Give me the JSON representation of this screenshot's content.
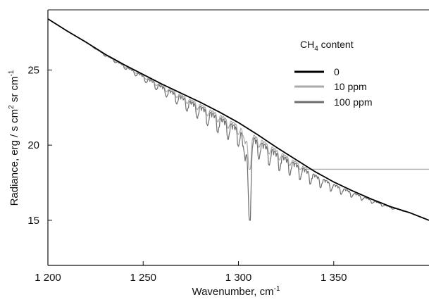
{
  "chart_data": {
    "type": "line",
    "xlabel": "Wavenumber, cm",
    "xlabel_sup": "-1",
    "ylabel": "Radiance, erg / s cm",
    "ylabel_sup1": "2",
    "ylabel_mid": " sr cm",
    "ylabel_sup2": "-1",
    "xlim": [
      1200,
      1400
    ],
    "ylim": [
      12,
      29
    ],
    "x_ticks": [
      1200,
      1250,
      1300,
      1350
    ],
    "x_tick_labels": [
      "1 200",
      "1 250",
      "1 300",
      "1 350"
    ],
    "y_ticks": [
      15,
      20,
      25
    ],
    "y_tick_labels": [
      "15",
      "20",
      "25"
    ],
    "grid": false,
    "legend": {
      "title": "CH",
      "title_sub": "4",
      "title_rest": " content",
      "placement": "top-right",
      "entries": [
        "0",
        "10 ppm",
        "100 ppm"
      ]
    },
    "series": [
      {
        "name": "0",
        "color": "#000000",
        "absorption": 0,
        "values": [
          [
            1200,
            28.4
          ],
          [
            1210,
            27.6
          ],
          [
            1220,
            26.85
          ],
          [
            1230,
            26.05
          ],
          [
            1240,
            25.35
          ],
          [
            1250,
            24.7
          ],
          [
            1260,
            24.05
          ],
          [
            1270,
            23.45
          ],
          [
            1280,
            22.85
          ],
          [
            1290,
            22.2
          ],
          [
            1300,
            21.5
          ],
          [
            1310,
            20.7
          ],
          [
            1320,
            19.85
          ],
          [
            1330,
            19.05
          ],
          [
            1340,
            18.25
          ],
          [
            1350,
            17.55
          ],
          [
            1360,
            16.95
          ],
          [
            1370,
            16.4
          ],
          [
            1380,
            15.9
          ],
          [
            1390,
            15.5
          ],
          [
            1400,
            15.0
          ]
        ]
      },
      {
        "name": "10 ppm",
        "color": "#aaaaaa",
        "absorption": 0.5,
        "central_dip_min": 18.4
      },
      {
        "name": "100 ppm",
        "color": "#6e6e6e",
        "absorption": 1,
        "central_dip_min": 15.0
      }
    ]
  }
}
